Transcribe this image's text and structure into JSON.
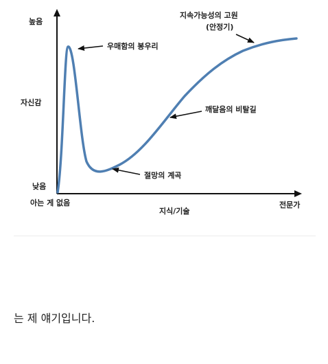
{
  "diagram": {
    "y_axis": {
      "label": "자신감",
      "top_label": "높음",
      "bottom_label": "낮음"
    },
    "x_axis": {
      "label": "지식/기술",
      "left_label": "아는 게 없음",
      "right_label": "전문가"
    },
    "annotations": {
      "peak": "우매함의 봉우리",
      "valley": "절망의 계곡",
      "slope": "깨달음의 비탈길",
      "plateau_line1": "지속가능성의 고원",
      "plateau_line2": "(안정기)"
    },
    "colors": {
      "curve": "#4f7fb2",
      "axis": "#111111",
      "arrow": "#111111"
    }
  },
  "caption": "는 제 얘기입니다."
}
